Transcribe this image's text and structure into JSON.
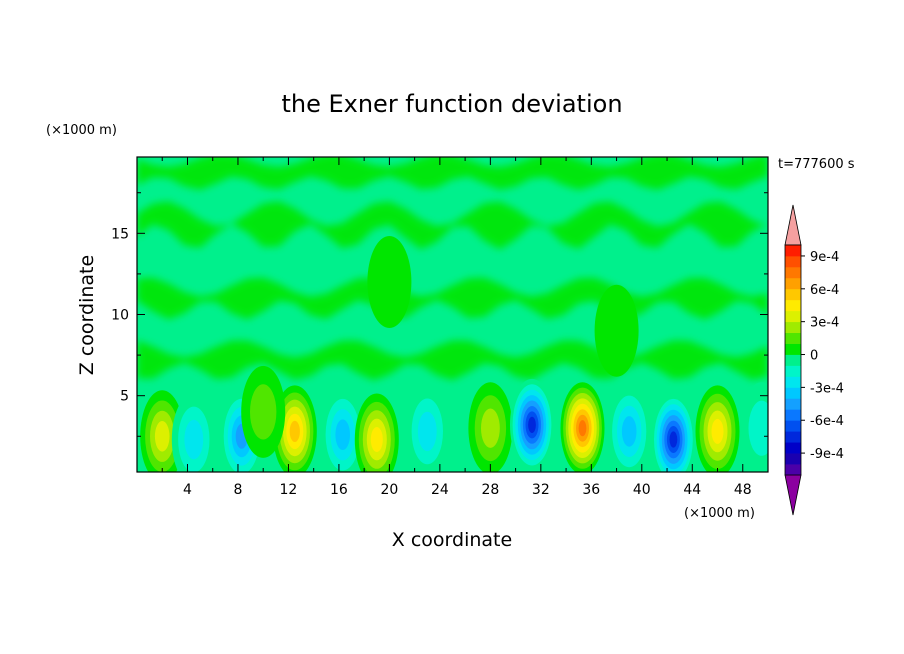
{
  "chart_data": {
    "type": "heatmap",
    "title": "the Exner function deviation",
    "xlabel": "X coordinate",
    "ylabel": "Z coordinate",
    "x_unit": "(×1000 m)",
    "y_unit": "(×1000 m)",
    "time_label": "t=777600 s",
    "xlim": [
      0,
      50
    ],
    "ylim": [
      0.3,
      19.7
    ],
    "x_ticks": [
      4,
      8,
      12,
      16,
      20,
      24,
      28,
      32,
      36,
      40,
      44,
      48
    ],
    "y_ticks": [
      5,
      10,
      15
    ],
    "grid": false,
    "colorbar": {
      "position": "right",
      "tick_labels": [
        "-9e-4",
        "-6e-4",
        "-3e-4",
        "0",
        "3e-4",
        "6e-4",
        "9e-4"
      ],
      "tick_values": [
        -0.0009,
        -0.0006,
        -0.0003,
        0,
        0.0003,
        0.0006,
        0.0009
      ],
      "levels": [
        -0.0011,
        -0.001,
        -0.0009,
        -0.0008,
        -0.0007,
        -0.0006,
        -0.0005,
        -0.0004,
        -0.0003,
        -0.0002,
        -0.0001,
        0,
        0.0001,
        0.0002,
        0.0003,
        0.0004,
        0.0005,
        0.0006,
        0.0007,
        0.0008,
        0.0009,
        0.001,
        0.0011
      ],
      "colors": [
        "#8b00a0",
        "#4b00a8",
        "#1a00b0",
        "#0000c8",
        "#0028dc",
        "#0050f0",
        "#0a78ff",
        "#14a0ff",
        "#00c8ff",
        "#00e6ee",
        "#00f5c8",
        "#00f08c",
        "#00e600",
        "#50e600",
        "#a0eb00",
        "#dcf000",
        "#ffeb00",
        "#ffc800",
        "#ffa000",
        "#ff7800",
        "#ff5000",
        "#ff1e00",
        "#f5a0a0"
      ]
    },
    "features": [
      {
        "x": 2.0,
        "z": 2.5,
        "value": 0.00035
      },
      {
        "x": 4.5,
        "z": 2.3,
        "value": -0.0003
      },
      {
        "x": 8.3,
        "z": 2.5,
        "value": -0.00045
      },
      {
        "x": 12.5,
        "z": 2.8,
        "value": 0.0006
      },
      {
        "x": 16.3,
        "z": 2.6,
        "value": -0.00035
      },
      {
        "x": 19.0,
        "z": 2.3,
        "value": 0.00045
      },
      {
        "x": 23.0,
        "z": 2.8,
        "value": -0.00025
      },
      {
        "x": 28.0,
        "z": 3.0,
        "value": 0.0003
      },
      {
        "x": 31.3,
        "z": 3.2,
        "value": -0.00075
      },
      {
        "x": 35.3,
        "z": 3.0,
        "value": 0.00075
      },
      {
        "x": 39.0,
        "z": 2.8,
        "value": -0.0004
      },
      {
        "x": 42.5,
        "z": 2.3,
        "value": -0.0008
      },
      {
        "x": 46.0,
        "z": 2.8,
        "value": 0.0005
      },
      {
        "x": 49.5,
        "z": 3.0,
        "value": -0.0002
      },
      {
        "x": 10.0,
        "z": 4.0,
        "value": 0.0002
      },
      {
        "x": 20.0,
        "z": 12.0,
        "value": 0.00015
      },
      {
        "x": 38.0,
        "z": 9.0,
        "value": 0.0001
      }
    ]
  }
}
